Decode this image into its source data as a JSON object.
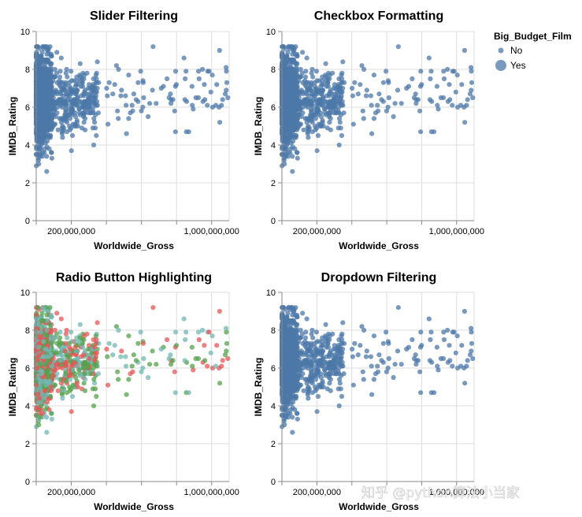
{
  "chart_data": [
    {
      "type": "scatter",
      "title": "Slider Filtering",
      "xlabel": "Worldwide_Gross",
      "ylabel": "IMDB_Rating",
      "x_ticks": [
        "200,000,000",
        "1,000,000,000"
      ],
      "y_ticks": [
        "0",
        "2",
        "4",
        "6",
        "8",
        "10"
      ],
      "xlim": [
        0,
        1100000000
      ],
      "ylim": [
        0,
        10
      ],
      "grid": true,
      "coloring": "single",
      "color": "#4c78a8"
    },
    {
      "type": "scatter",
      "title": "Checkbox Formatting",
      "xlabel": "Worldwide_Gross",
      "ylabel": "IMDB_Rating",
      "x_ticks": [
        "200,000,000",
        "1,000,000,000"
      ],
      "y_ticks": [
        "0",
        "2",
        "4",
        "6",
        "8",
        "10"
      ],
      "xlim": [
        0,
        1100000000
      ],
      "ylim": [
        0,
        10
      ],
      "grid": true,
      "coloring": "single",
      "color": "#4c78a8"
    },
    {
      "type": "scatter",
      "title": "Radio Button Highlighting",
      "xlabel": "Worldwide_Gross",
      "ylabel": "IMDB_Rating",
      "x_ticks": [
        "200,000,000",
        "1,000,000,000"
      ],
      "y_ticks": [
        "0",
        "2",
        "4",
        "6",
        "8",
        "10"
      ],
      "xlim": [
        0,
        1100000000
      ],
      "ylim": [
        0,
        10
      ],
      "grid": true,
      "coloring": "multi",
      "colors": [
        "#54a24b",
        "#e45756",
        "#72b7b2",
        "#4c78a8"
      ]
    },
    {
      "type": "scatter",
      "title": "Dropdown Filtering",
      "xlabel": "Worldwide_Gross",
      "ylabel": "IMDB_Rating",
      "x_ticks": [
        "200,000,000",
        "1,000,000,000"
      ],
      "y_ticks": [
        "0",
        "2",
        "4",
        "6",
        "8",
        "10"
      ],
      "xlim": [
        0,
        1100000000
      ],
      "ylim": [
        0,
        10
      ],
      "grid": true,
      "coloring": "single",
      "color": "#4c78a8"
    }
  ],
  "legend": {
    "title": "Big_Budget_Film",
    "placement": "top-right",
    "items": [
      {
        "label": "No",
        "size": "small"
      },
      {
        "label": "Yes",
        "size": "large"
      }
    ],
    "color": "#4c78a8"
  },
  "watermark": "知乎 @python算法小当家"
}
